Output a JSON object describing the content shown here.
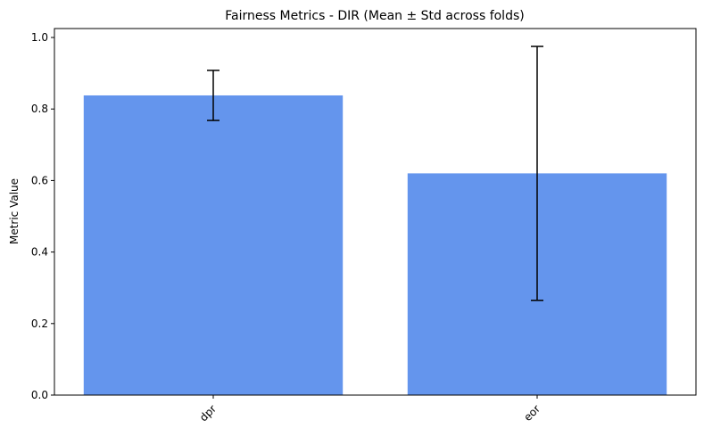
{
  "chart_data": {
    "type": "bar",
    "title": "Fairness Metrics - DIR (Mean ± Std across folds)",
    "y_label": "Metric Value",
    "categories": [
      "dpr",
      "eor"
    ],
    "values": [
      0.838,
      0.62
    ],
    "errors": [
      0.07,
      0.355
    ],
    "color": "#6495ed",
    "ylim": [
      0,
      1.025
    ],
    "yticks": [
      {
        "value": 0,
        "label": "0.0"
      },
      {
        "value": 0.2,
        "label": "0.2"
      },
      {
        "value": 0.4,
        "label": "0.4"
      },
      {
        "value": 0.6,
        "label": "0.6"
      },
      {
        "value": 0.8,
        "label": "0.8"
      },
      {
        "value": 1,
        "label": "1.0"
      }
    ],
    "grid": false
  }
}
